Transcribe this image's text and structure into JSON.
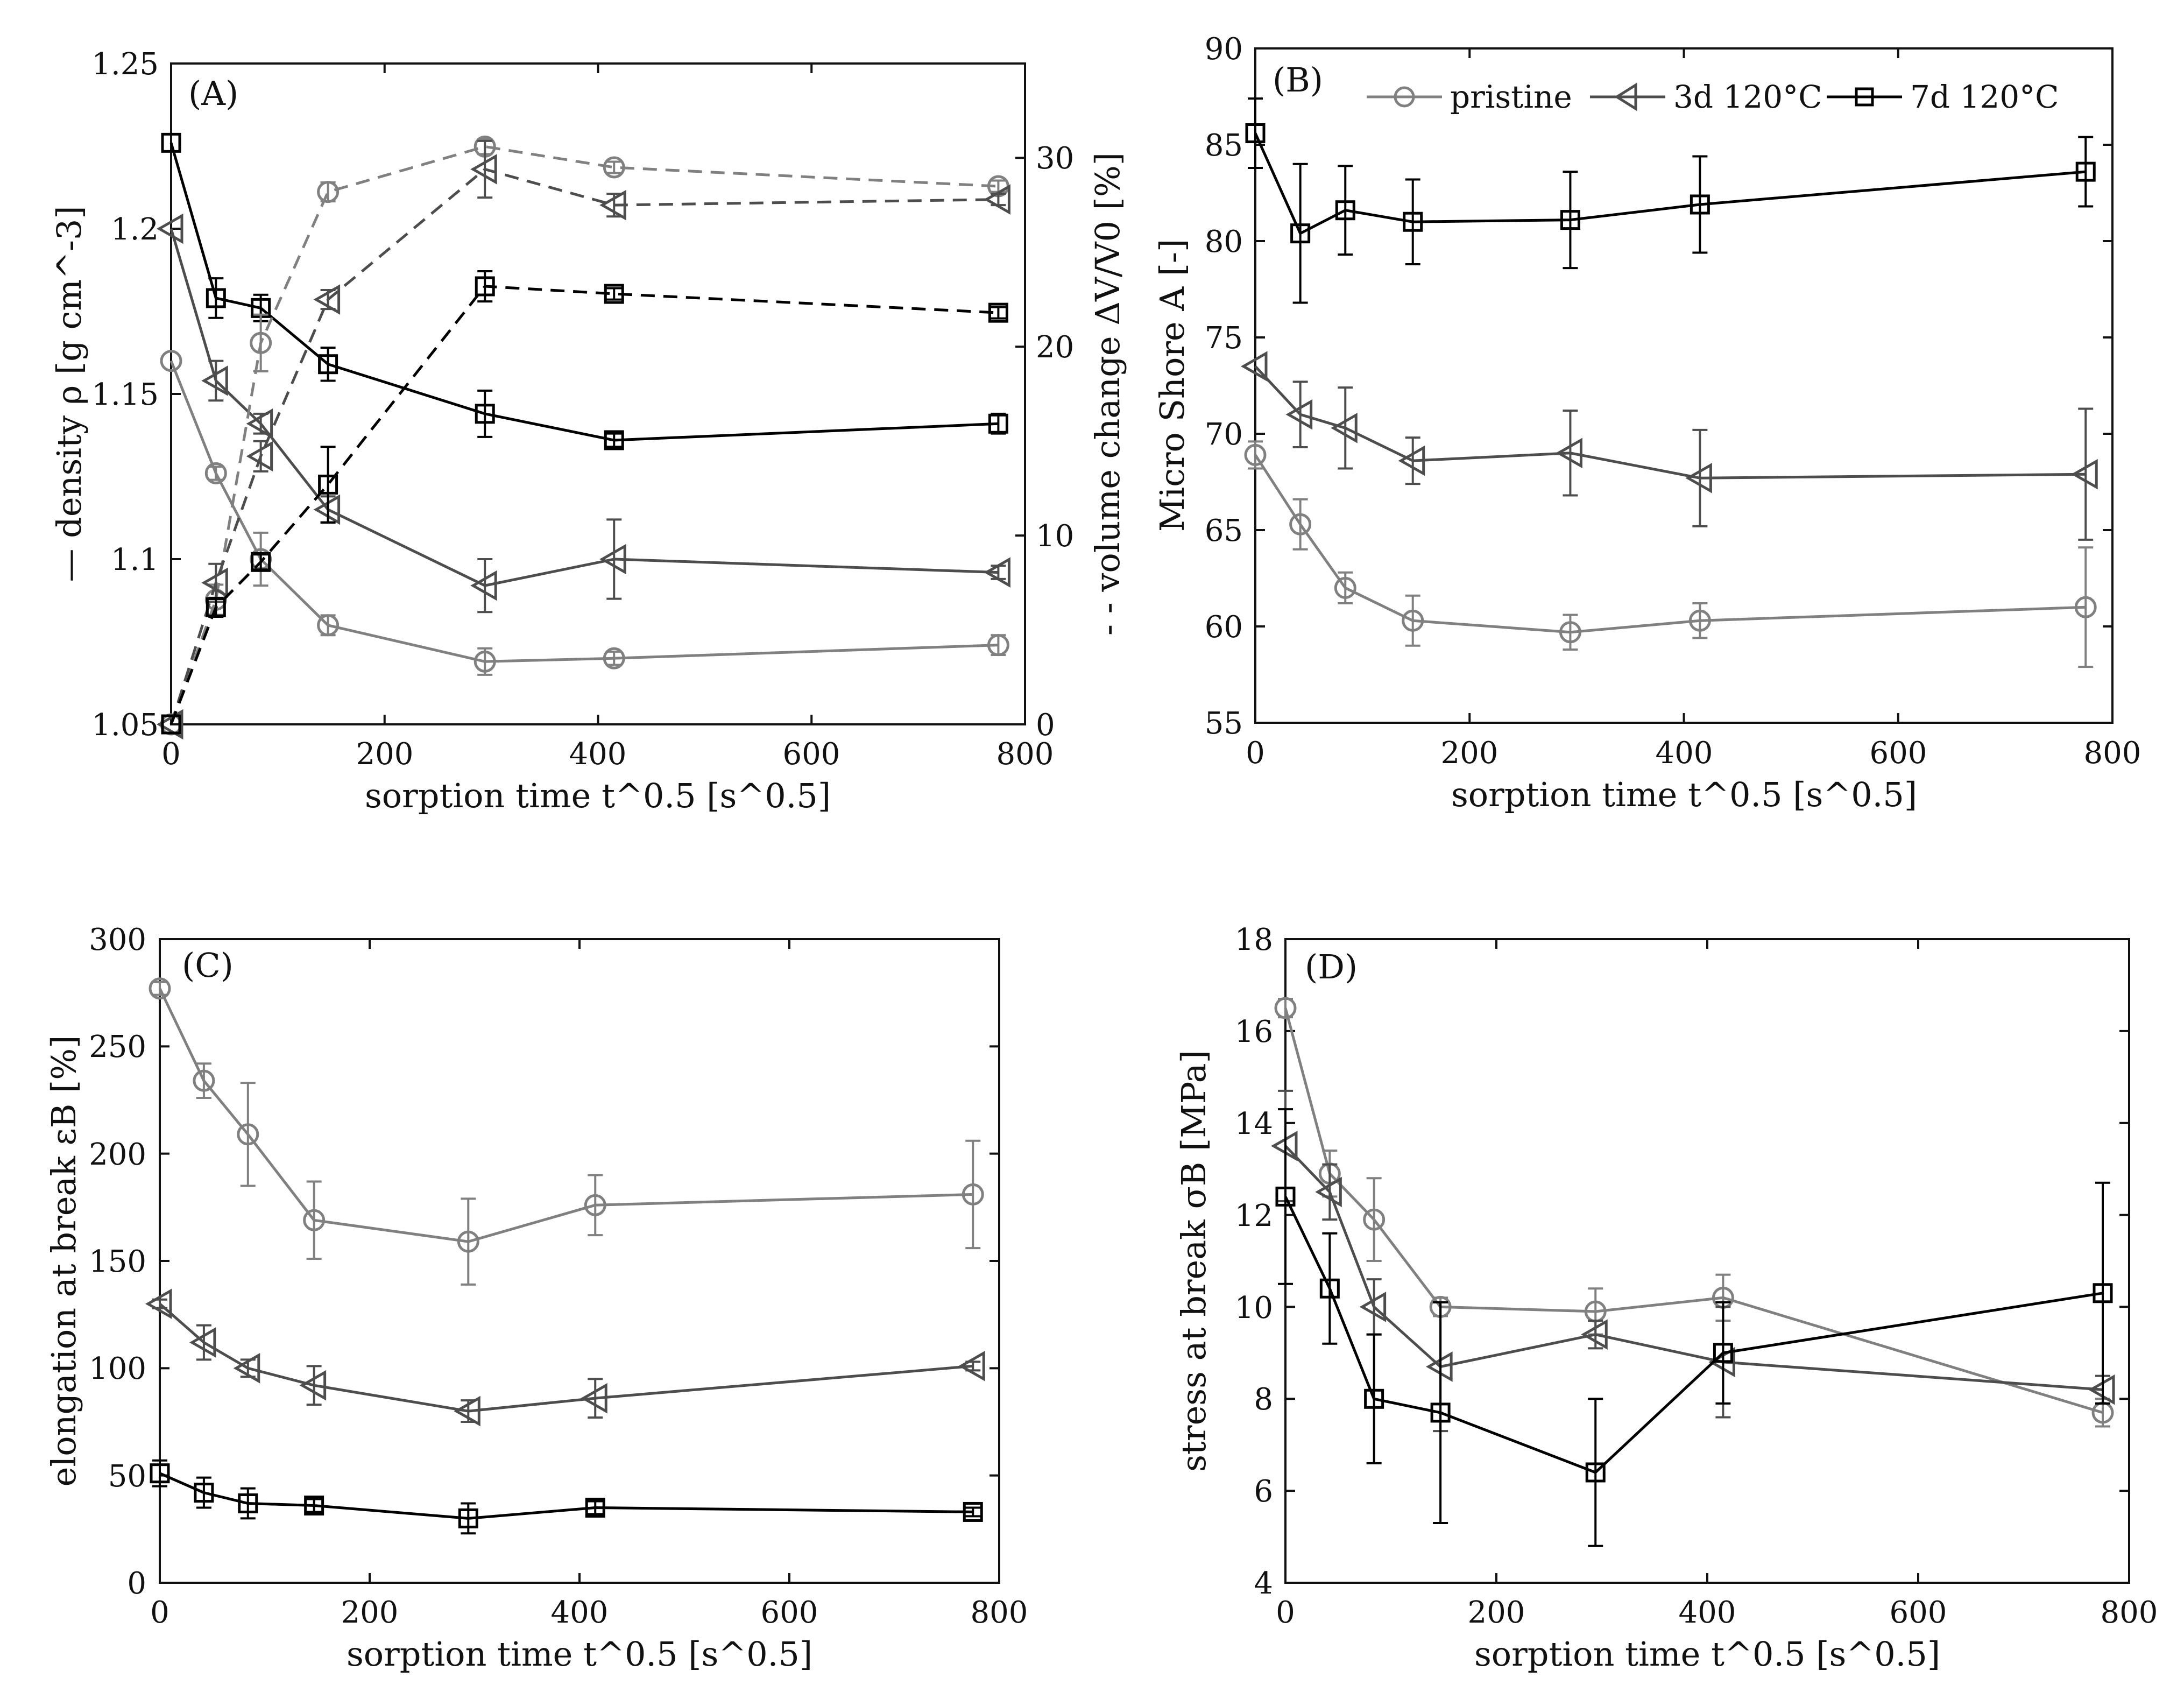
{
  "chart_data": [
    {
      "panel": "(A)",
      "type": "line",
      "xlabel": "sorption time t^0.5 [s^0.5]",
      "ylabel": "— density ρ [g cm^-3]",
      "ylabel_right": "- - volume change ΔV/V0 [%]",
      "xlim": [
        0,
        800
      ],
      "ylim": [
        1.05,
        1.25
      ],
      "ylim_right": [
        0,
        35
      ],
      "xticks": [
        "0",
        "200",
        "400",
        "600",
        "800"
      ],
      "yticks": [
        "1.05",
        "1.1",
        "1.15",
        "1.2",
        "1.25"
      ],
      "yticks_right": [
        "0",
        "10",
        "20",
        "30"
      ],
      "x": [
        0,
        42,
        84,
        147,
        294,
        415,
        775
      ],
      "series": [
        {
          "name": "pristine density",
          "axis": "left",
          "style": "solid",
          "color": "#808080",
          "marker": "circle",
          "values": [
            1.16,
            1.126,
            1.1,
            1.08,
            1.069,
            1.07,
            1.074
          ],
          "err": [
            0,
            0.002,
            0.008,
            0.003,
            0.004,
            0.002,
            0.003
          ]
        },
        {
          "name": "3d 120°C density",
          "axis": "left",
          "style": "solid",
          "color": "#4d4d4d",
          "marker": "triangle-left",
          "values": [
            1.2,
            1.154,
            1.141,
            1.115,
            1.092,
            1.1,
            1.096
          ],
          "err": [
            0,
            0.006,
            0.003,
            0.004,
            0.008,
            0.012,
            0.002
          ]
        },
        {
          "name": "7d 120°C density",
          "axis": "left",
          "style": "solid",
          "color": "#000000",
          "marker": "square",
          "values": [
            1.226,
            1.179,
            1.176,
            1.159,
            1.144,
            1.136,
            1.141
          ],
          "err": [
            0,
            0.006,
            0.004,
            0.005,
            0.007,
            0.002,
            0.003
          ]
        },
        {
          "name": "pristine volume change",
          "axis": "right",
          "style": "dashed",
          "color": "#808080",
          "marker": "circle",
          "values": [
            0,
            6.6,
            20.2,
            28.2,
            30.6,
            29.5,
            28.5
          ],
          "err": [
            0,
            0.8,
            1.5,
            0.5,
            0.4,
            0.3,
            0.3
          ]
        },
        {
          "name": "3d 120°C volume change",
          "axis": "right",
          "style": "dashed",
          "color": "#4d4d4d",
          "marker": "triangle-left",
          "values": [
            0,
            7.5,
            14.2,
            22.5,
            29.4,
            27.5,
            27.8
          ],
          "err": [
            0,
            1.0,
            0.8,
            0.5,
            1.5,
            0.6,
            0.3
          ]
        },
        {
          "name": "7d 120°C volume change",
          "axis": "right",
          "style": "dashed",
          "color": "#000000",
          "marker": "square",
          "values": [
            0,
            6.2,
            8.6,
            12.7,
            23.2,
            22.8,
            21.8
          ],
          "err": [
            0,
            0.5,
            0.4,
            2.0,
            0.8,
            0.3,
            0.3
          ]
        }
      ]
    },
    {
      "panel": "(B)",
      "type": "line",
      "xlabel": "sorption time t^0.5 [s^0.5]",
      "ylabel": "Micro Shore A [-]",
      "xlim": [
        0,
        800
      ],
      "ylim": [
        55,
        90
      ],
      "xticks": [
        "0",
        "200",
        "400",
        "600",
        "800"
      ],
      "yticks": [
        "55",
        "60",
        "65",
        "70",
        "75",
        "80",
        "85",
        "90"
      ],
      "legend": [
        "pristine",
        "3d 120°C",
        "7d 120°C"
      ],
      "legend_position": "top-right",
      "x": [
        0,
        42,
        84,
        147,
        294,
        415,
        775
      ],
      "series": [
        {
          "name": "pristine",
          "color": "#808080",
          "marker": "circle",
          "values": [
            68.9,
            65.3,
            62.0,
            60.3,
            59.7,
            60.3,
            61.0
          ],
          "err": [
            0.7,
            1.3,
            0.8,
            1.3,
            0.9,
            0.9,
            3.1
          ]
        },
        {
          "name": "3d 120°C",
          "color": "#4d4d4d",
          "marker": "triangle-left",
          "values": [
            73.5,
            71.0,
            70.3,
            68.6,
            69.0,
            67.7,
            67.9
          ],
          "err": [
            0,
            1.7,
            2.1,
            1.2,
            2.2,
            2.5,
            3.4
          ]
        },
        {
          "name": "7d 120°C",
          "color": "#000000",
          "marker": "square",
          "values": [
            85.6,
            80.4,
            81.6,
            81.0,
            81.1,
            81.9,
            83.6
          ],
          "err": [
            1.8,
            3.6,
            2.3,
            2.2,
            2.5,
            2.5,
            1.8
          ]
        }
      ]
    },
    {
      "panel": "(C)",
      "type": "line",
      "xlabel": "sorption time t^0.5 [s^0.5]",
      "ylabel": "elongation at break εB [%]",
      "xlim": [
        0,
        800
      ],
      "ylim": [
        0,
        300
      ],
      "xticks": [
        "0",
        "200",
        "400",
        "600",
        "800"
      ],
      "yticks": [
        "0",
        "50",
        "100",
        "150",
        "200",
        "250",
        "300"
      ],
      "x": [
        0,
        42,
        84,
        147,
        294,
        415,
        775
      ],
      "series": [
        {
          "name": "pristine",
          "color": "#808080",
          "marker": "circle",
          "values": [
            277,
            234,
            209,
            169,
            159,
            176,
            181
          ],
          "err": [
            3,
            8,
            24,
            18,
            20,
            14,
            25
          ]
        },
        {
          "name": "3d 120°C",
          "color": "#4d4d4d",
          "marker": "triangle-left",
          "values": [
            130,
            112,
            100,
            92,
            80,
            86,
            101
          ],
          "err": [
            2,
            8,
            4,
            9,
            5,
            9,
            2
          ]
        },
        {
          "name": "7d 120°C",
          "color": "#000000",
          "marker": "square",
          "values": [
            51,
            42,
            37,
            36,
            30,
            35,
            33
          ],
          "err": [
            6,
            7,
            7,
            3,
            7,
            3,
            2
          ]
        }
      ]
    },
    {
      "panel": "(D)",
      "type": "line",
      "xlabel": "sorption time t^0.5 [s^0.5]",
      "ylabel": "stress at break σB [MPa]",
      "xlim": [
        0,
        800
      ],
      "ylim": [
        4,
        18
      ],
      "xticks": [
        "0",
        "200",
        "400",
        "600",
        "800"
      ],
      "yticks": [
        "4",
        "6",
        "8",
        "10",
        "12",
        "14",
        "16",
        "18"
      ],
      "x": [
        0,
        42,
        84,
        147,
        294,
        415,
        775
      ],
      "series": [
        {
          "name": "pristine",
          "color": "#808080",
          "marker": "circle",
          "values": [
            16.5,
            12.9,
            11.9,
            10.0,
            9.9,
            10.2,
            7.7
          ],
          "err": [
            0.2,
            0.5,
            0.9,
            0.2,
            0.5,
            0.5,
            0.3
          ]
        },
        {
          "name": "3d 120°C",
          "color": "#4d4d4d",
          "marker": "triangle-left",
          "values": [
            13.5,
            12.5,
            10.0,
            8.7,
            9.4,
            8.8,
            8.2
          ],
          "err": [
            1.2,
            0.6,
            0.6,
            1.4,
            0.3,
            1.2,
            0.3
          ]
        },
        {
          "name": "7d 120°C",
          "color": "#000000",
          "marker": "square",
          "values": [
            12.4,
            10.4,
            8.0,
            7.7,
            6.4,
            9.0,
            10.3
          ],
          "err": [
            1.9,
            1.2,
            1.4,
            2.4,
            1.6,
            1.1,
            2.4
          ]
        }
      ]
    }
  ]
}
